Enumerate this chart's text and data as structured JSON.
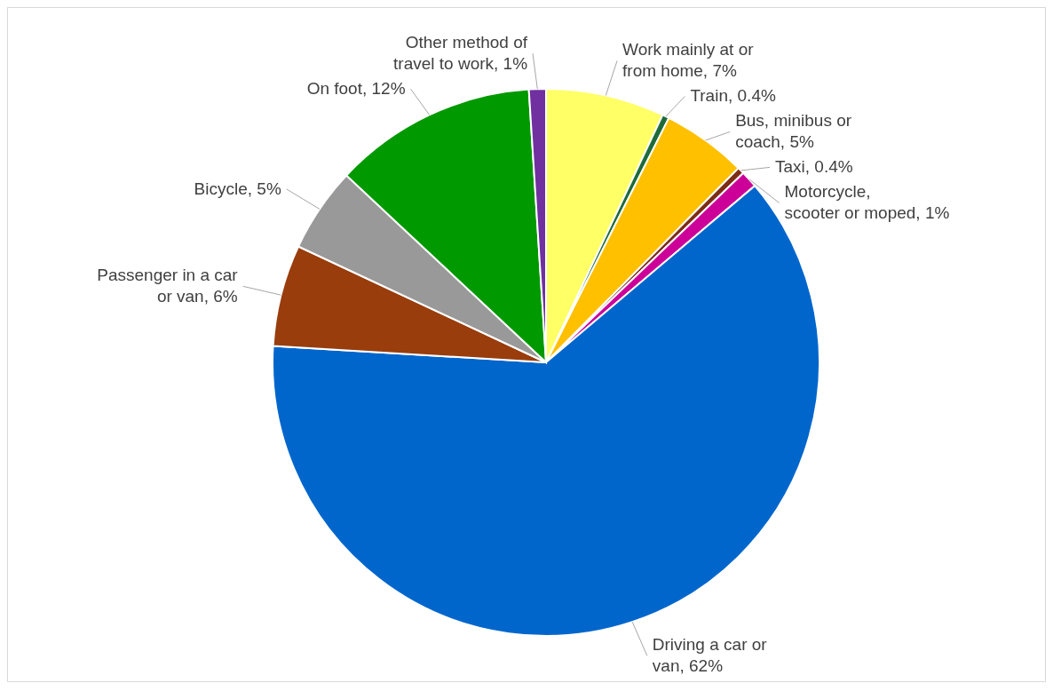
{
  "chart_data": {
    "type": "pie",
    "categories": [
      "Work mainly at or from home",
      "Train",
      "Bus, minibus or coach",
      "Taxi",
      "Motorcycle, scooter or moped",
      "Driving a car or van",
      "Passenger in a car or van",
      "Bicycle",
      "On foot",
      "Other method of travel to work"
    ],
    "values": [
      7,
      0.4,
      5,
      0.4,
      1,
      62,
      6,
      5,
      12,
      1
    ],
    "value_labels": [
      "7%",
      "0.4%",
      "5%",
      "0.4%",
      "1%",
      "62%",
      "6%",
      "5%",
      "12%",
      "1%"
    ],
    "colors": [
      "#ffff66",
      "#1e6b3a",
      "#ffc000",
      "#7b2c12",
      "#cc0099",
      "#0066cc",
      "#993d0d",
      "#999999",
      "#009900",
      "#7030a0"
    ]
  }
}
